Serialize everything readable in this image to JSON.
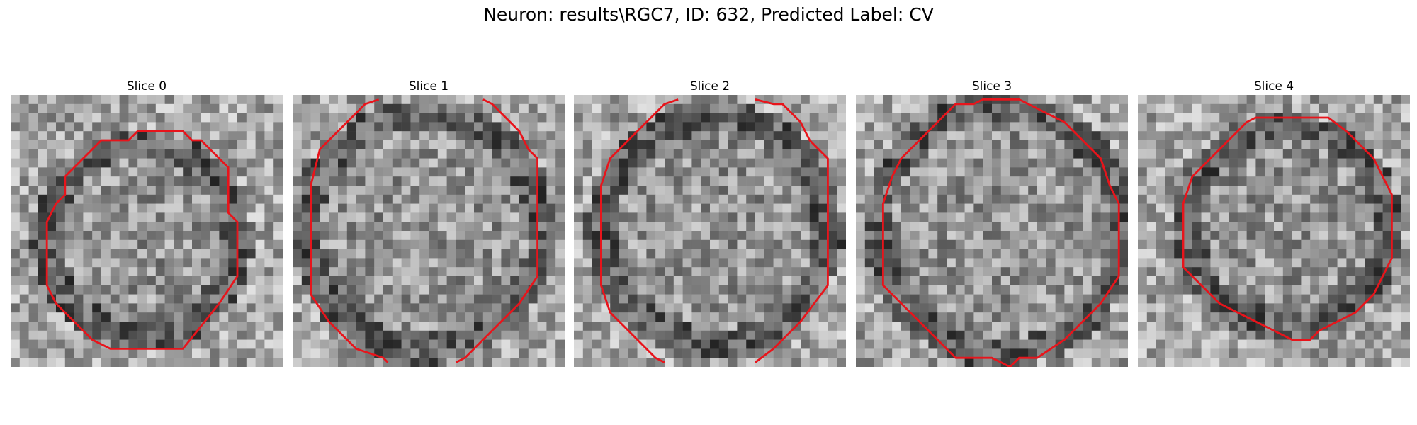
{
  "figure": {
    "title": "Neuron: results\\RGC7, ID: 632, Predicted Label: CV"
  },
  "panels": [
    {
      "title": "Slice 0"
    },
    {
      "title": "Slice 1"
    },
    {
      "title": "Slice 2"
    },
    {
      "title": "Slice 3"
    },
    {
      "title": "Slice 4"
    }
  ],
  "colors": {
    "contour": "#e8141b",
    "background": "#ffffff"
  }
}
